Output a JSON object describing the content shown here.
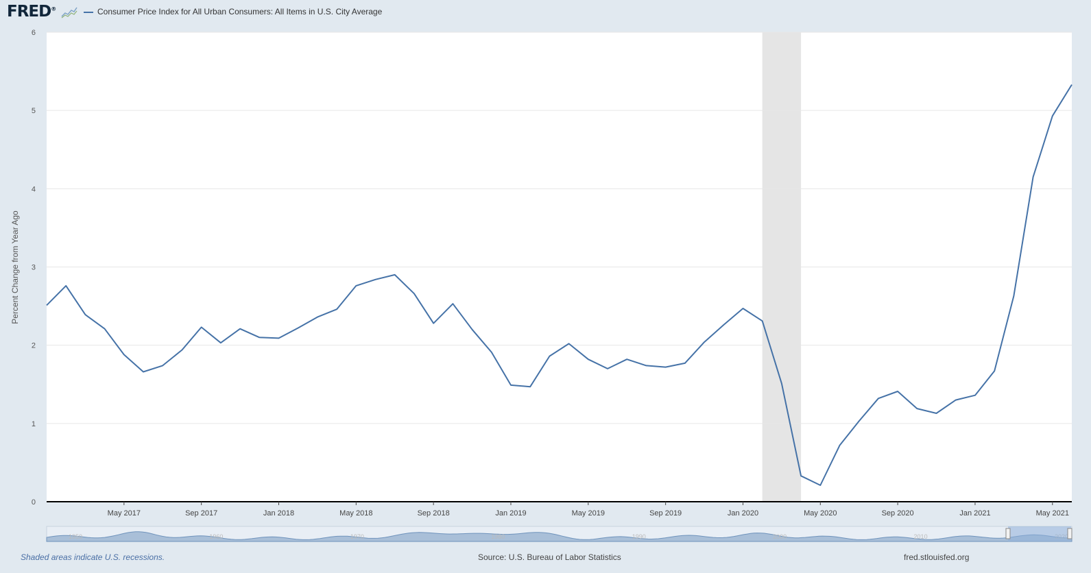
{
  "header": {
    "logo_text": "FRED",
    "logo_mark": "®",
    "logo_icon": "mini-line-chart-icon",
    "legend_label": "Consumer Price Index for All Urban Consumers: All Items in U.S. City Average",
    "legend_color": "#4572a7"
  },
  "chart_data": {
    "type": "line",
    "title": "",
    "xlabel": "",
    "ylabel": "Percent Change from Year Ago",
    "ylim": [
      0,
      6
    ],
    "yticks": [
      0,
      1,
      2,
      3,
      4,
      5,
      6
    ],
    "grid": "horizontal",
    "x_range": [
      "2017-01",
      "2021-06"
    ],
    "xtick_labels": [
      "May 2017",
      "Sep 2017",
      "Jan 2018",
      "May 2018",
      "Sep 2018",
      "Jan 2019",
      "May 2019",
      "Sep 2019",
      "Jan 2020",
      "May 2020",
      "Sep 2020",
      "Jan 2021",
      "May 2021"
    ],
    "xtick_dates": [
      "2017-05",
      "2017-09",
      "2018-01",
      "2018-05",
      "2018-09",
      "2019-01",
      "2019-05",
      "2019-09",
      "2020-01",
      "2020-05",
      "2020-09",
      "2021-01",
      "2021-05"
    ],
    "recessions": [
      {
        "start": "2020-02",
        "end": "2020-04"
      }
    ],
    "series": [
      {
        "name": "Consumer Price Index for All Urban Consumers: All Items in U.S. City Average",
        "color": "#4572a7",
        "x": [
          "2017-01",
          "2017-02",
          "2017-03",
          "2017-04",
          "2017-05",
          "2017-06",
          "2017-07",
          "2017-08",
          "2017-09",
          "2017-10",
          "2017-11",
          "2017-12",
          "2018-01",
          "2018-02",
          "2018-03",
          "2018-04",
          "2018-05",
          "2018-06",
          "2018-07",
          "2018-08",
          "2018-09",
          "2018-10",
          "2018-11",
          "2018-12",
          "2019-01",
          "2019-02",
          "2019-03",
          "2019-04",
          "2019-05",
          "2019-06",
          "2019-07",
          "2019-08",
          "2019-09",
          "2019-10",
          "2019-11",
          "2019-12",
          "2020-01",
          "2020-02",
          "2020-03",
          "2020-04",
          "2020-05",
          "2020-06",
          "2020-07",
          "2020-08",
          "2020-09",
          "2020-10",
          "2020-11",
          "2020-12",
          "2021-01",
          "2021-02",
          "2021-03",
          "2021-04",
          "2021-05",
          "2021-06"
        ],
        "values": [
          2.51,
          2.76,
          2.39,
          2.21,
          1.88,
          1.66,
          1.74,
          1.94,
          2.23,
          2.03,
          2.21,
          2.1,
          2.09,
          2.22,
          2.36,
          2.46,
          2.76,
          2.84,
          2.9,
          2.66,
          2.28,
          2.53,
          2.2,
          1.91,
          1.49,
          1.47,
          1.86,
          2.02,
          1.82,
          1.7,
          1.82,
          1.74,
          1.72,
          1.77,
          2.04,
          2.26,
          2.47,
          2.31,
          1.51,
          0.33,
          0.21,
          0.72,
          1.03,
          1.32,
          1.41,
          1.19,
          1.13,
          1.3,
          1.36,
          1.67,
          2.63,
          4.15,
          4.93,
          5.33
        ]
      }
    ]
  },
  "navigator": {
    "labels": [
      "1950",
      "1960",
      "1970",
      "1980",
      "1990",
      "2000",
      "2010",
      "2020"
    ]
  },
  "footer": {
    "note": "Shaded areas indicate U.S. recessions.",
    "source": "Source: U.S. Bureau of Labor Statistics",
    "url": "fred.stlouisfed.org"
  }
}
